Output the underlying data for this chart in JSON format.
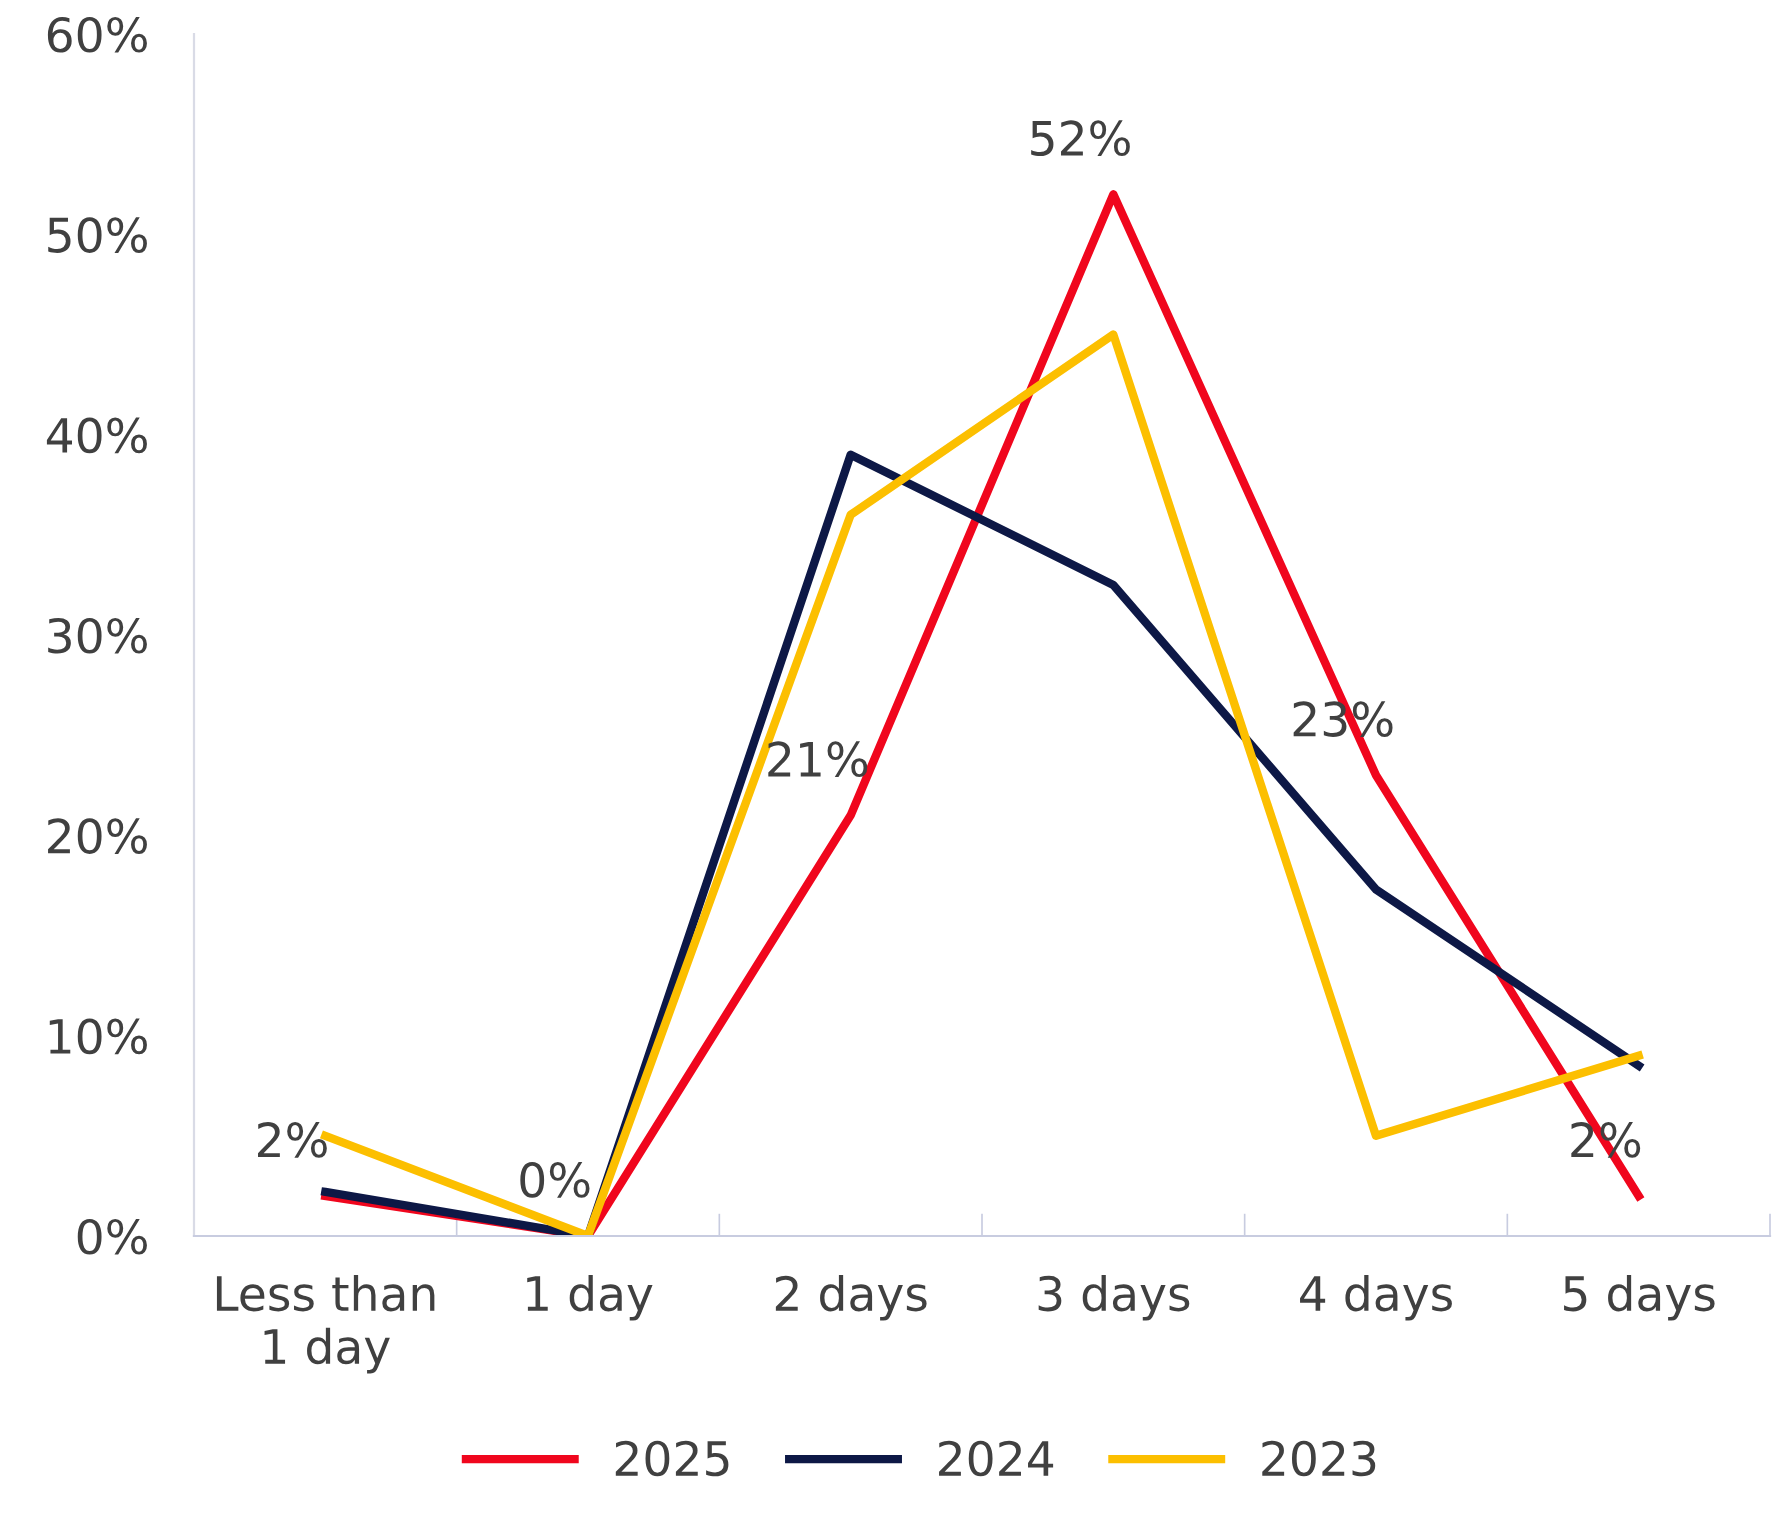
{
  "chart_data": {
    "type": "line",
    "categories": [
      "Less than\n1 day",
      "1 day",
      "2 days",
      "3 days",
      "4 days",
      "5 days"
    ],
    "series": [
      {
        "name": "2025",
        "color": "#f0061d",
        "values": [
          2,
          0,
          21,
          52,
          23,
          2
        ],
        "value_labels": [
          "2%",
          "0%",
          "21%",
          "52%",
          "23%",
          "2%"
        ]
      },
      {
        "name": "2024",
        "color": "#0d1846",
        "values": [
          2.2,
          0,
          39,
          32.5,
          17.3,
          8.5
        ]
      },
      {
        "name": "2023",
        "color": "#fcbf00",
        "values": [
          5,
          0,
          36,
          45,
          5,
          9
        ]
      }
    ],
    "ylim": [
      0,
      60
    ],
    "yticks": [
      {
        "value": 0,
        "label": "0%"
      },
      {
        "value": 10,
        "label": "10%"
      },
      {
        "value": 20,
        "label": "20%"
      },
      {
        "value": 30,
        "label": "30%"
      },
      {
        "value": 40,
        "label": "40%"
      },
      {
        "value": 50,
        "label": "50%"
      },
      {
        "value": 60,
        "label": "60%"
      }
    ],
    "grid": false,
    "legend": "bottom",
    "marker": "none",
    "line_style": "solid"
  }
}
